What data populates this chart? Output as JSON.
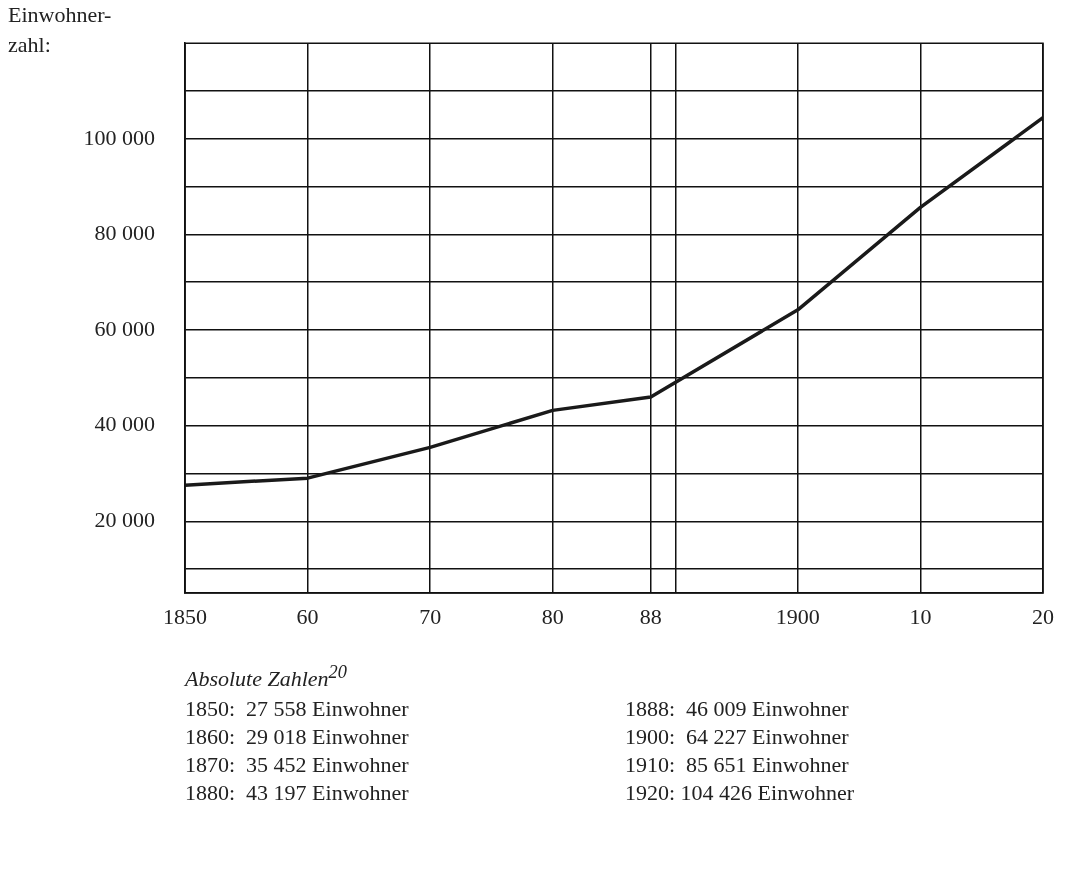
{
  "chart_data": {
    "type": "line",
    "ylabel": "Einwohner-\nzahl:",
    "x": [
      1850,
      1860,
      1870,
      1880,
      1888,
      1900,
      1910,
      1920
    ],
    "series": [
      {
        "color": "#1a1a1a",
        "values": [
          27558,
          29018,
          35452,
          43197,
          46009,
          64227,
          85651,
          104426
        ]
      }
    ],
    "xlim": [
      1850,
      1920
    ],
    "xticks": [
      1850,
      {
        "value": 1860,
        "label": "60"
      },
      {
        "value": 1870,
        "label": "70"
      },
      {
        "value": 1880,
        "label": "80"
      },
      {
        "value": 1888,
        "label": "88"
      },
      {
        "value": 1890,
        "label": null
      },
      1900,
      {
        "value": 1910,
        "label": "10"
      },
      {
        "value": 1920,
        "label": "20"
      }
    ],
    "ylim": [
      5000,
      120000
    ],
    "yticks": [
      {
        "value": 10000,
        "label": null
      },
      {
        "value": 20000,
        "label": "20 000"
      },
      {
        "value": 30000,
        "label": null
      },
      {
        "value": 40000,
        "label": "40 000"
      },
      {
        "value": 50000,
        "label": null
      },
      {
        "value": 60000,
        "label": "60 000"
      },
      {
        "value": 70000,
        "label": null
      },
      {
        "value": 80000,
        "label": "80 000"
      },
      {
        "value": 90000,
        "label": null
      },
      {
        "value": 100000,
        "label": "100 000"
      },
      {
        "value": 110000,
        "label": null
      }
    ],
    "grid": true,
    "legend": false,
    "annotations": [
      "Absolute Zahlen$^{20}$",
      "1850:  27 558 Einwohner",
      "1860:  29 018 Einwohner",
      "1870:  35 452 Einwohner",
      "1880:  43 197 Einwohner",
      "1888:  46 009 Einwohner",
      "1900:  64 227 Einwohner",
      "1910:  85 651 Einwohner",
      "1920: 104 426 Einwohner"
    ]
  }
}
